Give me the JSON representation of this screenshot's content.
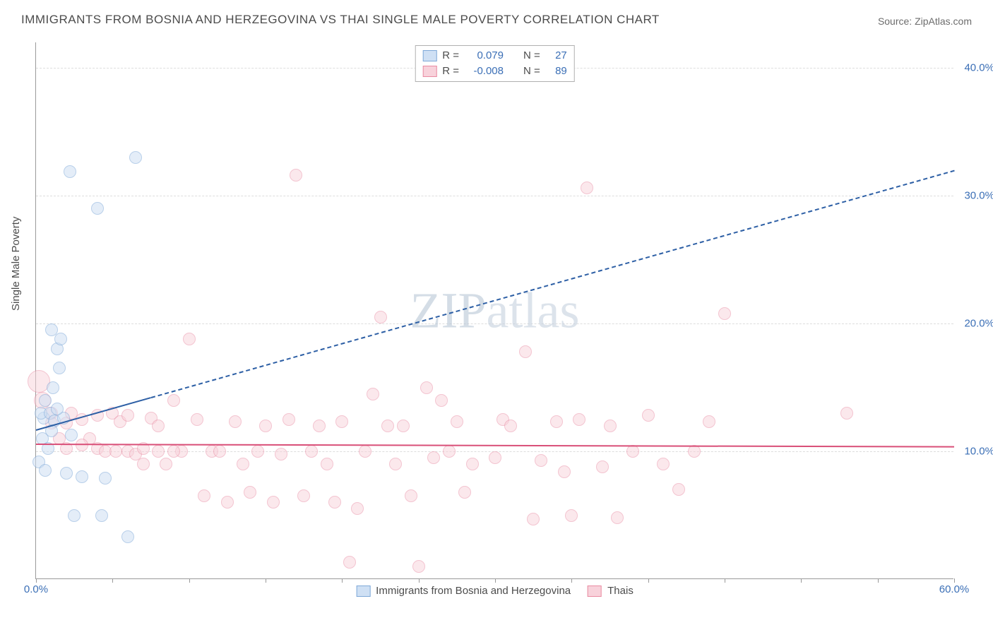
{
  "title": "IMMIGRANTS FROM BOSNIA AND HERZEGOVINA VS THAI SINGLE MALE POVERTY CORRELATION CHART",
  "source": "Source: ZipAtlas.com",
  "ylabel": "Single Male Poverty",
  "watermark": "ZIPatlas",
  "chart": {
    "type": "scatter",
    "background_color": "#ffffff",
    "grid_color": "#dddddd",
    "axis_color": "#9a9a9a",
    "tick_color": "#3b6fb6",
    "xlim": [
      0,
      60
    ],
    "ylim": [
      0,
      42
    ],
    "x_ticks": [
      0,
      5,
      10,
      15,
      20,
      25,
      30,
      35,
      40,
      45,
      50,
      55,
      60
    ],
    "x_tick_labels": {
      "0": "0.0%",
      "60": "60.0%"
    },
    "y_ticks": [
      10,
      20,
      30,
      40
    ],
    "y_tick_labels": {
      "10": "10.0%",
      "20": "20.0%",
      "30": "30.0%",
      "40": "40.0%"
    },
    "label_fontsize": 15,
    "title_fontsize": 17
  },
  "series": [
    {
      "name": "Immigrants from Bosnia and Herzegovina",
      "fill": "#cfe0f4",
      "stroke": "#7fa9d8",
      "fill_opacity": 0.55,
      "marker_r": 9,
      "R": "0.079",
      "N": "27",
      "trend": {
        "x1": 0,
        "y1": 11.7,
        "x2": 60,
        "y2": 32.0,
        "solid_until_x": 7.5,
        "color": "#2d5fa5",
        "width": 2
      },
      "points": [
        {
          "x": 0.5,
          "y": 12.6
        },
        {
          "x": 0.3,
          "y": 13.0
        },
        {
          "x": 0.6,
          "y": 14.0
        },
        {
          "x": 0.9,
          "y": 13.0
        },
        {
          "x": 1.2,
          "y": 12.4
        },
        {
          "x": 1.0,
          "y": 11.6
        },
        {
          "x": 0.4,
          "y": 11.0
        },
        {
          "x": 0.8,
          "y": 10.2
        },
        {
          "x": 1.1,
          "y": 15.0
        },
        {
          "x": 1.4,
          "y": 18.0
        },
        {
          "x": 1.6,
          "y": 18.8
        },
        {
          "x": 1.0,
          "y": 19.5
        },
        {
          "x": 1.5,
          "y": 16.5
        },
        {
          "x": 2.2,
          "y": 31.9
        },
        {
          "x": 4.0,
          "y": 29.0
        },
        {
          "x": 6.5,
          "y": 33.0
        },
        {
          "x": 2.0,
          "y": 8.3
        },
        {
          "x": 3.0,
          "y": 8.0
        },
        {
          "x": 2.5,
          "y": 5.0
        },
        {
          "x": 4.3,
          "y": 5.0
        },
        {
          "x": 4.5,
          "y": 7.9
        },
        {
          "x": 6.0,
          "y": 3.3
        },
        {
          "x": 1.8,
          "y": 12.6
        },
        {
          "x": 2.3,
          "y": 11.3
        },
        {
          "x": 0.2,
          "y": 9.2
        },
        {
          "x": 0.6,
          "y": 8.5
        },
        {
          "x": 1.4,
          "y": 13.3
        }
      ]
    },
    {
      "name": "Thais",
      "fill": "#f8d2db",
      "stroke": "#e98ba2",
      "fill_opacity": 0.5,
      "marker_r": 9,
      "R": "-0.008",
      "N": "89",
      "trend": {
        "x1": 0,
        "y1": 10.6,
        "x2": 60,
        "y2": 10.4,
        "solid_until_x": 60,
        "color": "#d94f78",
        "width": 2
      },
      "points": [
        {
          "x": 0.2,
          "y": 15.5,
          "r": 16
        },
        {
          "x": 0.4,
          "y": 14.0,
          "r": 12
        },
        {
          "x": 1.0,
          "y": 13.0
        },
        {
          "x": 1.5,
          "y": 11.0
        },
        {
          "x": 2.0,
          "y": 12.2
        },
        {
          "x": 2.3,
          "y": 13.0
        },
        {
          "x": 3.0,
          "y": 12.5
        },
        {
          "x": 3.5,
          "y": 11.0
        },
        {
          "x": 4.0,
          "y": 10.2
        },
        {
          "x": 4.5,
          "y": 10.0
        },
        {
          "x": 5.0,
          "y": 13.0
        },
        {
          "x": 5.2,
          "y": 10.0
        },
        {
          "x": 5.5,
          "y": 12.3
        },
        {
          "x": 6.0,
          "y": 10.0
        },
        {
          "x": 6.5,
          "y": 9.8
        },
        {
          "x": 7.0,
          "y": 10.2
        },
        {
          "x": 7.5,
          "y": 12.6
        },
        {
          "x": 8.0,
          "y": 10.0
        },
        {
          "x": 8.5,
          "y": 9.0
        },
        {
          "x": 9.0,
          "y": 14.0
        },
        {
          "x": 9.5,
          "y": 10.0
        },
        {
          "x": 10.0,
          "y": 18.8
        },
        {
          "x": 10.5,
          "y": 12.5
        },
        {
          "x": 11.0,
          "y": 6.5
        },
        {
          "x": 11.5,
          "y": 10.0
        },
        {
          "x": 12.0,
          "y": 10.0
        },
        {
          "x": 12.5,
          "y": 6.0
        },
        {
          "x": 13.0,
          "y": 12.3
        },
        {
          "x": 13.5,
          "y": 9.0
        },
        {
          "x": 14.0,
          "y": 6.8
        },
        {
          "x": 14.5,
          "y": 10.0
        },
        {
          "x": 15.0,
          "y": 12.0
        },
        {
          "x": 15.5,
          "y": 6.0
        },
        {
          "x": 16.0,
          "y": 9.8
        },
        {
          "x": 16.5,
          "y": 12.5
        },
        {
          "x": 17.0,
          "y": 31.6
        },
        {
          "x": 17.5,
          "y": 6.5
        },
        {
          "x": 18.0,
          "y": 10.0
        },
        {
          "x": 18.5,
          "y": 12.0
        },
        {
          "x": 19.0,
          "y": 9.0
        },
        {
          "x": 19.5,
          "y": 6.0
        },
        {
          "x": 20.0,
          "y": 12.3
        },
        {
          "x": 20.5,
          "y": 1.3
        },
        {
          "x": 21.0,
          "y": 5.5
        },
        {
          "x": 21.5,
          "y": 10.0
        },
        {
          "x": 22.0,
          "y": 14.5
        },
        {
          "x": 22.5,
          "y": 20.5
        },
        {
          "x": 23.0,
          "y": 12.0
        },
        {
          "x": 23.5,
          "y": 9.0
        },
        {
          "x": 24.0,
          "y": 12.0
        },
        {
          "x": 24.5,
          "y": 6.5
        },
        {
          "x": 25.0,
          "y": 1.0
        },
        {
          "x": 25.5,
          "y": 15.0
        },
        {
          "x": 26.0,
          "y": 9.5
        },
        {
          "x": 26.5,
          "y": 14.0
        },
        {
          "x": 27.0,
          "y": 10.0
        },
        {
          "x": 27.5,
          "y": 12.3
        },
        {
          "x": 28.0,
          "y": 6.8
        },
        {
          "x": 28.5,
          "y": 9.0
        },
        {
          "x": 30.0,
          "y": 9.5
        },
        {
          "x": 30.5,
          "y": 12.5
        },
        {
          "x": 31.0,
          "y": 12.0
        },
        {
          "x": 32.0,
          "y": 17.8
        },
        {
          "x": 32.5,
          "y": 4.7
        },
        {
          "x": 33.0,
          "y": 9.3
        },
        {
          "x": 34.0,
          "y": 12.3
        },
        {
          "x": 34.5,
          "y": 8.4
        },
        {
          "x": 35.0,
          "y": 5.0
        },
        {
          "x": 35.5,
          "y": 12.5
        },
        {
          "x": 36.0,
          "y": 30.6
        },
        {
          "x": 37.0,
          "y": 8.8
        },
        {
          "x": 37.5,
          "y": 12.0
        },
        {
          "x": 38.0,
          "y": 4.8
        },
        {
          "x": 39.0,
          "y": 10.0
        },
        {
          "x": 40.0,
          "y": 12.8
        },
        {
          "x": 41.0,
          "y": 9.0
        },
        {
          "x": 42.0,
          "y": 7.0
        },
        {
          "x": 43.0,
          "y": 10.0
        },
        {
          "x": 44.0,
          "y": 12.3
        },
        {
          "x": 45.0,
          "y": 20.8
        },
        {
          "x": 53.0,
          "y": 13.0
        },
        {
          "x": 3.0,
          "y": 10.5
        },
        {
          "x": 4.0,
          "y": 12.8
        },
        {
          "x": 6.0,
          "y": 12.8
        },
        {
          "x": 7.0,
          "y": 9.0
        },
        {
          "x": 8.0,
          "y": 12.0
        },
        {
          "x": 9.0,
          "y": 10.0
        },
        {
          "x": 2.0,
          "y": 10.2
        },
        {
          "x": 1.0,
          "y": 12.2
        }
      ]
    }
  ],
  "legend_top": {
    "R_label": "R =",
    "N_label": "N ="
  },
  "legend_bottom": [
    {
      "swatch_fill": "#cfe0f4",
      "swatch_stroke": "#7fa9d8",
      "label": "Immigrants from Bosnia and Herzegovina"
    },
    {
      "swatch_fill": "#f8d2db",
      "swatch_stroke": "#e98ba2",
      "label": "Thais"
    }
  ]
}
